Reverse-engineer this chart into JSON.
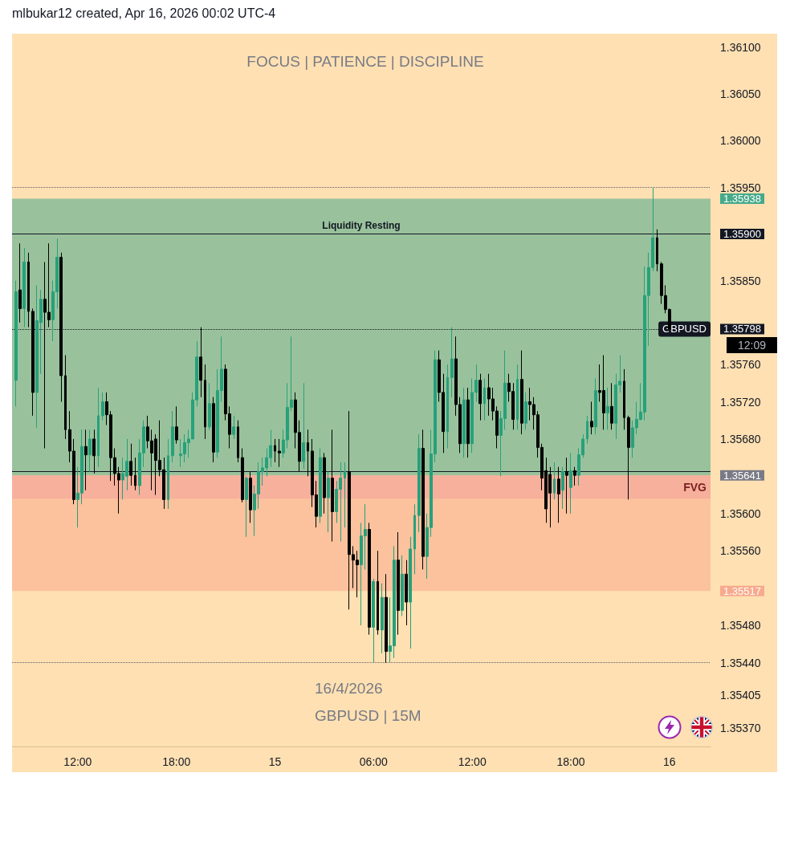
{
  "chart_data": {
    "type": "candlestick",
    "title": "FOCUS | PATIENCE | DISCIPLINE",
    "annotations": [
      "mlbukar12 created, Apr 16, 2026 00:02 UTC-4",
      "16/4/2026",
      "GBPUSD | 15M",
      "12:09"
    ],
    "x": [
      "2026-04-14T08:15",
      "2026-04-14T08:30",
      "2026-04-14T08:45",
      "2026-04-14T09:00",
      "2026-04-14T09:15",
      "2026-04-14T09:30",
      "2026-04-14T09:45",
      "2026-04-14T10:00",
      "2026-04-14T10:15",
      "2026-04-14T10:30",
      "2026-04-14T10:45",
      "2026-04-14T11:00",
      "2026-04-14T11:15",
      "2026-04-14T11:30",
      "2026-04-14T11:45",
      "2026-04-14T12:00",
      "2026-04-14T12:15",
      "2026-04-14T12:30",
      "2026-04-14T12:45",
      "2026-04-14T13:00",
      "2026-04-14T13:15",
      "2026-04-14T13:30",
      "2026-04-14T13:45",
      "2026-04-14T14:00",
      "2026-04-14T14:15",
      "2026-04-14T14:30",
      "2026-04-14T14:45",
      "2026-04-14T15:00",
      "2026-04-14T15:15",
      "2026-04-14T15:30",
      "2026-04-14T15:45",
      "2026-04-14T16:00",
      "2026-04-14T16:15",
      "2026-04-14T16:30",
      "2026-04-14T16:45",
      "2026-04-14T17:00",
      "2026-04-14T17:15",
      "2026-04-14T17:30",
      "2026-04-14T17:45",
      "2026-04-14T18:00",
      "2026-04-14T18:15",
      "2026-04-14T18:30",
      "2026-04-14T18:45",
      "2026-04-14T19:00",
      "2026-04-14T19:15",
      "2026-04-14T19:30",
      "2026-04-14T19:45",
      "2026-04-14T20:00",
      "2026-04-14T20:15",
      "2026-04-14T20:30",
      "2026-04-14T20:45",
      "2026-04-14T21:00",
      "2026-04-14T21:15",
      "2026-04-14T21:30",
      "2026-04-14T21:45",
      "2026-04-14T22:00",
      "2026-04-14T22:15",
      "2026-04-14T22:30",
      "2026-04-14T22:45",
      "2026-04-14T23:00",
      "2026-04-14T23:15",
      "2026-04-14T23:30",
      "2026-04-14T23:45",
      "2026-04-15T00:00",
      "2026-04-15T00:15",
      "2026-04-15T00:30",
      "2026-04-15T00:45",
      "2026-04-15T01:00",
      "2026-04-15T01:15",
      "2026-04-15T01:30",
      "2026-04-15T01:45",
      "2026-04-15T02:00",
      "2026-04-15T02:15",
      "2026-04-15T02:30",
      "2026-04-15T02:45",
      "2026-04-15T03:00",
      "2026-04-15T03:15",
      "2026-04-15T03:30",
      "2026-04-15T03:45",
      "2026-04-15T04:00",
      "2026-04-15T04:15",
      "2026-04-15T04:30",
      "2026-04-15T04:45",
      "2026-04-15T05:00",
      "2026-04-15T05:15",
      "2026-04-15T05:30",
      "2026-04-15T05:45",
      "2026-04-15T06:00",
      "2026-04-15T06:15",
      "2026-04-15T06:30",
      "2026-04-15T06:45",
      "2026-04-15T07:00",
      "2026-04-15T07:15",
      "2026-04-15T07:30",
      "2026-04-15T07:45",
      "2026-04-15T08:00",
      "2026-04-15T08:15",
      "2026-04-15T08:30",
      "2026-04-15T08:45",
      "2026-04-15T09:00",
      "2026-04-15T09:15",
      "2026-04-15T09:30",
      "2026-04-15T09:45",
      "2026-04-15T10:00",
      "2026-04-15T10:15",
      "2026-04-15T10:30",
      "2026-04-15T10:45",
      "2026-04-15T11:00",
      "2026-04-15T11:15",
      "2026-04-15T11:30",
      "2026-04-15T11:45",
      "2026-04-15T12:00",
      "2026-04-15T12:15",
      "2026-04-15T12:30",
      "2026-04-15T12:45",
      "2026-04-15T13:00",
      "2026-04-15T13:15",
      "2026-04-15T13:30",
      "2026-04-15T13:45",
      "2026-04-15T14:00",
      "2026-04-15T14:15",
      "2026-04-15T14:30",
      "2026-04-15T14:45",
      "2026-04-15T15:00",
      "2026-04-15T15:15",
      "2026-04-15T15:30",
      "2026-04-15T15:45",
      "2026-04-15T16:00",
      "2026-04-15T16:15",
      "2026-04-15T16:30",
      "2026-04-15T16:45",
      "2026-04-15T17:00",
      "2026-04-15T17:15",
      "2026-04-15T17:30",
      "2026-04-15T17:45",
      "2026-04-15T18:00",
      "2026-04-15T18:15",
      "2026-04-15T18:30",
      "2026-04-15T18:45",
      "2026-04-15T19:00",
      "2026-04-15T19:15",
      "2026-04-15T19:30",
      "2026-04-15T19:45",
      "2026-04-15T20:00",
      "2026-04-15T20:15",
      "2026-04-15T20:30",
      "2026-04-15T20:45",
      "2026-04-15T21:00",
      "2026-04-15T21:15",
      "2026-04-15T21:30",
      "2026-04-15T21:45",
      "2026-04-15T22:00",
      "2026-04-15T22:15",
      "2026-04-15T22:30",
      "2026-04-15T22:45",
      "2026-04-15T23:00",
      "2026-04-15T23:15",
      "2026-04-15T23:30",
      "2026-04-15T23:45",
      "2026-04-16T00:00"
    ],
    "ohlc": [
      [
        1.35743,
        1.3585,
        1.35715,
        1.35838
      ],
      [
        1.3584,
        1.3589,
        1.35805,
        1.3582
      ],
      [
        1.3582,
        1.35885,
        1.358,
        1.3587
      ],
      [
        1.3587,
        1.3588,
        1.358,
        1.35817
      ],
      [
        1.35817,
        1.3582,
        1.35705,
        1.3573
      ],
      [
        1.3573,
        1.35845,
        1.35692,
        1.35807
      ],
      [
        1.35805,
        1.3584,
        1.3575,
        1.3583
      ],
      [
        1.3583,
        1.3587,
        1.3567,
        1.35816
      ],
      [
        1.35816,
        1.3589,
        1.358,
        1.35808
      ],
      [
        1.35808,
        1.3585,
        1.35785,
        1.35838
      ],
      [
        1.35838,
        1.35895,
        1.3582,
        1.35875
      ],
      [
        1.35875,
        1.3588,
        1.3572,
        1.35748
      ],
      [
        1.35748,
        1.3577,
        1.3568,
        1.3569
      ],
      [
        1.3569,
        1.3571,
        1.35655,
        1.35667
      ],
      [
        1.35667,
        1.3568,
        1.3561,
        1.35615
      ],
      [
        1.35615,
        1.3565,
        1.35585,
        1.35622
      ],
      [
        1.35622,
        1.3569,
        1.3561,
        1.35672
      ],
      [
        1.35672,
        1.3569,
        1.35625,
        1.35663
      ],
      [
        1.35663,
        1.3569,
        1.35645,
        1.3568
      ],
      [
        1.3568,
        1.3569,
        1.35643,
        1.35662
      ],
      [
        1.35662,
        1.35735,
        1.3565,
        1.35705
      ],
      [
        1.35705,
        1.3573,
        1.357,
        1.3572
      ],
      [
        1.3572,
        1.3573,
        1.35695,
        1.35706
      ],
      [
        1.35706,
        1.3571,
        1.35635,
        1.3566
      ],
      [
        1.3566,
        1.3567,
        1.3563,
        1.35643
      ],
      [
        1.35643,
        1.3565,
        1.356,
        1.35636
      ],
      [
        1.35636,
        1.3566,
        1.35615,
        1.35643
      ],
      [
        1.3564,
        1.3568,
        1.35625,
        1.35656
      ],
      [
        1.35656,
        1.35675,
        1.3563,
        1.35641
      ],
      [
        1.35641,
        1.3566,
        1.35625,
        1.3563
      ],
      [
        1.3563,
        1.3568,
        1.3562,
        1.35665
      ],
      [
        1.35665,
        1.357,
        1.3565,
        1.35693
      ],
      [
        1.35693,
        1.35705,
        1.3567,
        1.35678
      ],
      [
        1.35678,
        1.3569,
        1.35625,
        1.35665
      ],
      [
        1.3568,
        1.35685,
        1.3562,
        1.35657
      ],
      [
        1.35657,
        1.357,
        1.3564,
        1.35647
      ],
      [
        1.35647,
        1.3566,
        1.35605,
        1.35615
      ],
      [
        1.35615,
        1.3568,
        1.35605,
        1.35662
      ],
      [
        1.35662,
        1.3571,
        1.35655,
        1.35693
      ],
      [
        1.35693,
        1.35715,
        1.35675,
        1.35679
      ],
      [
        1.35662,
        1.3568,
        1.3565,
        1.35664
      ],
      [
        1.35664,
        1.35685,
        1.35655,
        1.35676
      ],
      [
        1.35676,
        1.3569,
        1.3566,
        1.3568
      ],
      [
        1.3568,
        1.3573,
        1.3568,
        1.35722
      ],
      [
        1.35722,
        1.35785,
        1.35715,
        1.35768
      ],
      [
        1.35768,
        1.358,
        1.35725,
        1.35743
      ],
      [
        1.35743,
        1.3576,
        1.3568,
        1.35693
      ],
      [
        1.35693,
        1.3574,
        1.3569,
        1.35718
      ],
      [
        1.35718,
        1.35725,
        1.35655,
        1.35666
      ],
      [
        1.35666,
        1.35755,
        1.3566,
        1.35732
      ],
      [
        1.35732,
        1.3579,
        1.3572,
        1.35755
      ],
      [
        1.35755,
        1.3576,
        1.357,
        1.35707
      ],
      [
        1.35707,
        1.35715,
        1.3567,
        1.35685
      ],
      [
        1.35685,
        1.35705,
        1.3568,
        1.35693
      ],
      [
        1.35693,
        1.357,
        1.35655,
        1.3566
      ],
      [
        1.3566,
        1.3567,
        1.35612,
        1.35615
      ],
      [
        1.35615,
        1.3564,
        1.35575,
        1.35638
      ],
      [
        1.35638,
        1.35645,
        1.3559,
        1.35604
      ],
      [
        1.35604,
        1.3563,
        1.35576,
        1.35621
      ],
      [
        1.35621,
        1.35655,
        1.35605,
        1.35645
      ],
      [
        1.35645,
        1.3566,
        1.3563,
        1.35649
      ],
      [
        1.35649,
        1.3567,
        1.3564,
        1.3566
      ],
      [
        1.3566,
        1.3569,
        1.3565,
        1.35673
      ],
      [
        1.35673,
        1.3568,
        1.35655,
        1.35667
      ],
      [
        1.35667,
        1.3568,
        1.3565,
        1.35665
      ],
      [
        1.35665,
        1.3569,
        1.3566,
        1.35679
      ],
      [
        1.35679,
        1.3574,
        1.3567,
        1.35714
      ],
      [
        1.35714,
        1.3579,
        1.3571,
        1.35722
      ],
      [
        1.35722,
        1.3573,
        1.3567,
        1.35687
      ],
      [
        1.35687,
        1.357,
        1.35645,
        1.35656
      ],
      [
        1.35656,
        1.3574,
        1.35648,
        1.35676
      ],
      [
        1.35676,
        1.3569,
        1.3564,
        1.35667
      ],
      [
        1.35667,
        1.3568,
        1.35607,
        1.3562
      ],
      [
        1.3562,
        1.35635,
        1.35585,
        1.35597
      ],
      [
        1.35597,
        1.3567,
        1.3559,
        1.3566
      ],
      [
        1.3566,
        1.35665,
        1.356,
        1.35617
      ],
      [
        1.35617,
        1.35645,
        1.3558,
        1.35638
      ],
      [
        1.35638,
        1.3569,
        1.3557,
        1.35602
      ],
      [
        1.35602,
        1.35635,
        1.3559,
        1.35626
      ],
      [
        1.35626,
        1.35655,
        1.3557,
        1.35638
      ],
      [
        1.35638,
        1.35655,
        1.35585,
        1.35645
      ],
      [
        1.35645,
        1.3571,
        1.35497,
        1.35556
      ],
      [
        1.35556,
        1.35565,
        1.3552,
        1.3555
      ],
      [
        1.3555,
        1.3556,
        1.3551,
        1.35545
      ],
      [
        1.35545,
        1.3559,
        1.3548,
        1.35576
      ],
      [
        1.35576,
        1.3561,
        1.3554,
        1.35583
      ],
      [
        1.35583,
        1.3559,
        1.3547,
        1.35478
      ],
      [
        1.35478,
        1.3553,
        1.3544,
        1.35527
      ],
      [
        1.35527,
        1.3556,
        1.3547,
        1.35475
      ],
      [
        1.35475,
        1.35525,
        1.3545,
        1.3551
      ],
      [
        1.3551,
        1.35535,
        1.3544,
        1.35452
      ],
      [
        1.35452,
        1.3551,
        1.3544,
        1.35458
      ],
      [
        1.35458,
        1.35565,
        1.35445,
        1.3555
      ],
      [
        1.3555,
        1.3558,
        1.3547,
        1.35496
      ],
      [
        1.35496,
        1.35555,
        1.3549,
        1.35535
      ],
      [
        1.35535,
        1.3555,
        1.3548,
        1.35505
      ],
      [
        1.35505,
        1.35575,
        1.35455,
        1.35562
      ],
      [
        1.35562,
        1.3561,
        1.35535,
        1.35598
      ],
      [
        1.35598,
        1.35685,
        1.3558,
        1.3567
      ],
      [
        1.3567,
        1.3569,
        1.3554,
        1.35554
      ],
      [
        1.35554,
        1.356,
        1.3553,
        1.35585
      ],
      [
        1.35585,
        1.3569,
        1.35575,
        1.35664
      ],
      [
        1.35664,
        1.35775,
        1.35655,
        1.35765
      ],
      [
        1.35765,
        1.35775,
        1.3572,
        1.3573
      ],
      [
        1.3573,
        1.3575,
        1.35665,
        1.35688
      ],
      [
        1.35688,
        1.3576,
        1.3567,
        1.35746
      ],
      [
        1.35746,
        1.358,
        1.35725,
        1.35766
      ],
      [
        1.35766,
        1.3579,
        1.35705,
        1.35717
      ],
      [
        1.35717,
        1.35725,
        1.35665,
        1.35675
      ],
      [
        1.35675,
        1.35735,
        1.3566,
        1.35722
      ],
      [
        1.35722,
        1.35735,
        1.3566,
        1.35675
      ],
      [
        1.35675,
        1.35745,
        1.35665,
        1.3573
      ],
      [
        1.3573,
        1.3576,
        1.3572,
        1.35743
      ],
      [
        1.35743,
        1.3575,
        1.357,
        1.35718
      ],
      [
        1.35718,
        1.35745,
        1.357,
        1.35735
      ],
      [
        1.35735,
        1.3575,
        1.35705,
        1.35723
      ],
      [
        1.35723,
        1.35735,
        1.357,
        1.3571
      ],
      [
        1.3571,
        1.35715,
        1.3567,
        1.35684
      ],
      [
        1.35684,
        1.3571,
        1.3564,
        1.35702
      ],
      [
        1.35702,
        1.35775,
        1.3569,
        1.3574
      ],
      [
        1.3574,
        1.3575,
        1.3572,
        1.35731
      ],
      [
        1.35731,
        1.3574,
        1.3569,
        1.35701
      ],
      [
        1.35701,
        1.3576,
        1.3569,
        1.35744
      ],
      [
        1.35744,
        1.35775,
        1.35685,
        1.35697
      ],
      [
        1.35697,
        1.3573,
        1.3569,
        1.3572
      ],
      [
        1.3572,
        1.35735,
        1.357,
        1.35717
      ],
      [
        1.35717,
        1.35725,
        1.3569,
        1.35706
      ],
      [
        1.35706,
        1.3571,
        1.3566,
        1.35671
      ],
      [
        1.35671,
        1.35675,
        1.35625,
        1.35638
      ],
      [
        1.35646,
        1.3566,
        1.3559,
        1.35605
      ],
      [
        1.35642,
        1.3565,
        1.35585,
        1.35622
      ],
      [
        1.35622,
        1.35655,
        1.35615,
        1.35637
      ],
      [
        1.35637,
        1.3565,
        1.3559,
        1.35621
      ],
      [
        1.35625,
        1.3565,
        1.35605,
        1.35645
      ],
      [
        1.35645,
        1.3566,
        1.356,
        1.35641
      ],
      [
        1.35628,
        1.35665,
        1.356,
        1.35646
      ],
      [
        1.35646,
        1.3565,
        1.3563,
        1.35641
      ],
      [
        1.35641,
        1.3567,
        1.3563,
        1.35663
      ],
      [
        1.35663,
        1.35685,
        1.3566,
        1.3568
      ],
      [
        1.3568,
        1.35705,
        1.35675,
        1.35699
      ],
      [
        1.35699,
        1.3572,
        1.35685,
        1.35693
      ],
      [
        1.35693,
        1.35745,
        1.35685,
        1.35732
      ],
      [
        1.35732,
        1.3576,
        1.3572,
        1.3573
      ],
      [
        1.35732,
        1.3577,
        1.3569,
        1.35708
      ],
      [
        1.35708,
        1.35735,
        1.3569,
        1.35715
      ],
      [
        1.35715,
        1.3574,
        1.3569,
        1.35697
      ],
      [
        1.35697,
        1.3575,
        1.3568,
        1.35738
      ],
      [
        1.35738,
        1.3577,
        1.3573,
        1.35742
      ],
      [
        1.35742,
        1.35755,
        1.3569,
        1.35703
      ],
      [
        1.35703,
        1.35705,
        1.35615,
        1.35671
      ],
      [
        1.35671,
        1.357,
        1.3566,
        1.35692
      ],
      [
        1.35692,
        1.3572,
        1.35685,
        1.35701
      ],
      [
        1.35701,
        1.3574,
        1.357,
        1.35709
      ],
      [
        1.35709,
        1.35865,
        1.357,
        1.35834
      ],
      [
        1.35834,
        1.3588,
        1.3578,
        1.35864
      ],
      [
        1.35864,
        1.3595,
        1.3586,
        1.35896
      ],
      [
        1.35896,
        1.35905,
        1.3586,
        1.35868
      ],
      [
        1.35868,
        1.3587,
        1.35825,
        1.35834
      ],
      [
        1.35834,
        1.35845,
        1.35815,
        1.35819
      ],
      [
        1.35819,
        1.3582,
        1.35795,
        1.35798
      ]
    ],
    "colors": [
      "#26a17b",
      "#000000",
      "#26a17b",
      "#000000",
      "#000000",
      "#26a17b",
      "#26a17b",
      "#000000",
      "#000000",
      "#26a17b",
      "#26a17b",
      "#000000",
      "#000000",
      "#000000",
      "#000000",
      "#26a17b",
      "#26a17b",
      "#000000",
      "#26a17b",
      "#000000",
      "#26a17b",
      "#26a17b",
      "#000000",
      "#000000",
      "#000000",
      "#000000",
      "#26a17b",
      "#26a17b",
      "#000000",
      "#000000",
      "#26a17b",
      "#26a17b",
      "#000000",
      "#000000",
      "#000000",
      "#000000",
      "#000000",
      "#26a17b",
      "#26a17b",
      "#000000",
      "#26a17b",
      "#26a17b",
      "#26a17b",
      "#26a17b",
      "#26a17b",
      "#000000",
      "#000000",
      "#26a17b",
      "#000000",
      "#26a17b",
      "#26a17b",
      "#000000",
      "#000000",
      "#26a17b",
      "#000000",
      "#000000",
      "#26a17b",
      "#000000",
      "#26a17b",
      "#26a17b",
      "#26a17b",
      "#26a17b",
      "#26a17b",
      "#000000",
      "#000000",
      "#26a17b",
      "#26a17b",
      "#26a17b",
      "#000000",
      "#000000",
      "#26a17b",
      "#000000",
      "#000000",
      "#000000",
      "#26a17b",
      "#000000",
      "#26a17b",
      "#000000",
      "#26a17b",
      "#26a17b",
      "#26a17b",
      "#000000",
      "#000000",
      "#000000",
      "#26a17b",
      "#26a17b",
      "#000000",
      "#26a17b",
      "#000000",
      "#26a17b",
      "#000000",
      "#26a17b",
      "#26a17b",
      "#000000",
      "#26a17b",
      "#000000",
      "#26a17b",
      "#26a17b",
      "#26a17b",
      "#000000",
      "#26a17b",
      "#26a17b",
      "#26a17b",
      "#000000",
      "#000000",
      "#26a17b",
      "#26a17b",
      "#000000",
      "#000000",
      "#26a17b",
      "#000000",
      "#26a17b",
      "#26a17b",
      "#000000",
      "#26a17b",
      "#000000",
      "#000000",
      "#000000",
      "#26a17b",
      "#26a17b",
      "#000000",
      "#000000",
      "#26a17b",
      "#000000",
      "#26a17b",
      "#000000",
      "#000000",
      "#000000",
      "#000000",
      "#000000",
      "#000000",
      "#26a17b",
      "#000000",
      "#26a17b",
      "#000000",
      "#26a17b",
      "#000000",
      "#26a17b",
      "#26a17b",
      "#26a17b",
      "#000000",
      "#26a17b",
      "#000000",
      "#000000",
      "#26a17b",
      "#000000",
      "#26a17b",
      "#26a17b",
      "#000000",
      "#000000",
      "#26a17b",
      "#26a17b",
      "#26a17b",
      "#26a17b",
      "#26a17b",
      "#26a17b",
      "#000000",
      "#000000",
      "#000000",
      "#000000"
    ],
    "xlim": [
      "2026-04-14T08:00",
      "2026-04-16T02:30"
    ],
    "xticks": [
      {
        "value": "2026-04-14T12:00",
        "label": "12:00"
      },
      {
        "value": "2026-04-14T18:00",
        "label": "18:00"
      },
      {
        "value": "2026-04-15T00:00",
        "label": "15"
      },
      {
        "value": "2026-04-15T06:00",
        "label": "06:00"
      },
      {
        "value": "2026-04-15T12:00",
        "label": "12:00"
      },
      {
        "value": "2026-04-15T18:00",
        "label": "18:00"
      },
      {
        "value": "2026-04-16T00:00",
        "label": "16"
      }
    ],
    "ylim": [
      1.3535,
      1.36115
    ],
    "yticks": [
      {
        "value": 1.361,
        "label": "1.36100"
      },
      {
        "value": 1.3605,
        "label": "1.36050"
      },
      {
        "value": 1.36,
        "label": "1.36000"
      },
      {
        "value": 1.3595,
        "label": "1.35950"
      },
      {
        "value": 1.35938,
        "label": "1.35938"
      },
      {
        "value": 1.359,
        "label": "1.35900"
      },
      {
        "value": 1.3585,
        "label": "1.35850"
      },
      {
        "value": 1.35798,
        "label": "1.35798"
      },
      {
        "value": 1.3576,
        "label": "1.35760"
      },
      {
        "value": 1.3572,
        "label": "1.35720"
      },
      {
        "value": 1.3568,
        "label": "1.35680"
      },
      {
        "value": 1.35641,
        "label": "1.35641"
      },
      {
        "value": 1.356,
        "label": "1.35600"
      },
      {
        "value": 1.3556,
        "label": "1.35560"
      },
      {
        "value": 1.35517,
        "label": "1.35517"
      },
      {
        "value": 1.3548,
        "label": "1.35480"
      },
      {
        "value": 1.3544,
        "label": "1.35440"
      },
      {
        "value": 1.35405,
        "label": "1.35405"
      },
      {
        "value": 1.3537,
        "label": "1.35370"
      }
    ],
    "ref_lines": [
      {
        "axis": "y",
        "value": 1.3595,
        "color": "#5d606b",
        "line_style": "dotted"
      },
      {
        "axis": "y",
        "value": 1.359,
        "label": "Liquidity Resting",
        "color": "#131722",
        "line_style": "solid"
      },
      {
        "axis": "y",
        "value": 1.35798,
        "label": "GBPUSD",
        "color": "#131722",
        "line_style": "dotted"
      },
      {
        "axis": "y",
        "value": 1.35645,
        "color": "#131722",
        "line_style": "solid"
      },
      {
        "axis": "y",
        "value": 1.3544,
        "color": "#5d606b",
        "line_style": "dotted"
      }
    ],
    "bands": [
      {
        "axis": "y",
        "from": 1.35641,
        "to": 1.35938,
        "color": "#45a98a"
      },
      {
        "axis": "y",
        "from": 1.35517,
        "to": 1.35641,
        "color": "#f8aa8c"
      },
      {
        "axis": "y",
        "from": 1.35616,
        "to": 1.35641,
        "label": "FVG",
        "color": "#f2a29b"
      }
    ]
  }
}
